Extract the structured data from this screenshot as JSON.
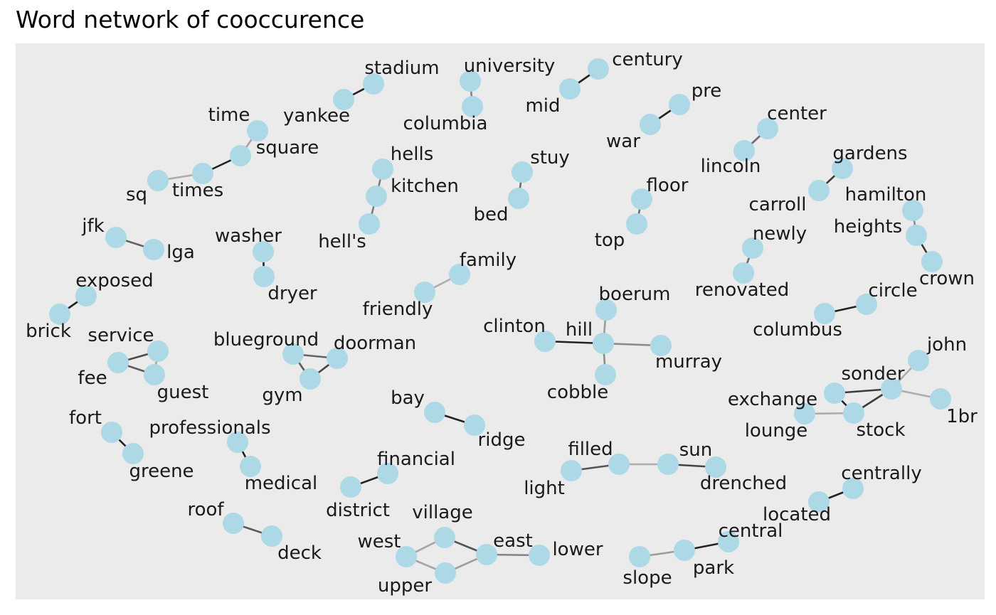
{
  "title": "Word network of cooccurence",
  "colors": {
    "panel": "#ebebeb",
    "node": "#add8e6",
    "edge_scale": [
      "#bdbdbd",
      "#1a1a1a"
    ]
  },
  "nodes": [
    {
      "id": "stadium",
      "label": "stadium"
    },
    {
      "id": "yankee",
      "label": "yankee"
    },
    {
      "id": "university",
      "label": "university"
    },
    {
      "id": "columbia",
      "label": "columbia"
    },
    {
      "id": "century",
      "label": "century"
    },
    {
      "id": "mid",
      "label": "mid"
    },
    {
      "id": "pre",
      "label": "pre"
    },
    {
      "id": "war",
      "label": "war"
    },
    {
      "id": "center",
      "label": "center"
    },
    {
      "id": "lincoln",
      "label": "lincoln"
    },
    {
      "id": "gardens",
      "label": "gardens"
    },
    {
      "id": "carroll",
      "label": "carroll"
    },
    {
      "id": "hamilton",
      "label": "hamilton"
    },
    {
      "id": "heights",
      "label": "heights"
    },
    {
      "id": "crown",
      "label": "crown"
    },
    {
      "id": "time",
      "label": "time"
    },
    {
      "id": "square",
      "label": "square"
    },
    {
      "id": "times",
      "label": "times"
    },
    {
      "id": "sq",
      "label": "sq"
    },
    {
      "id": "hells",
      "label": "hells"
    },
    {
      "id": "kitchen",
      "label": "kitchen"
    },
    {
      "id": "hell's",
      "label": "hell's"
    },
    {
      "id": "stuy",
      "label": "stuy"
    },
    {
      "id": "bed",
      "label": "bed"
    },
    {
      "id": "floor",
      "label": "floor"
    },
    {
      "id": "top",
      "label": "top"
    },
    {
      "id": "newly",
      "label": "newly"
    },
    {
      "id": "renovated",
      "label": "renovated"
    },
    {
      "id": "jfk",
      "label": "jfk"
    },
    {
      "id": "lga",
      "label": "lga"
    },
    {
      "id": "washer",
      "label": "washer"
    },
    {
      "id": "dryer",
      "label": "dryer"
    },
    {
      "id": "family",
      "label": "family"
    },
    {
      "id": "friendly",
      "label": "friendly"
    },
    {
      "id": "exposed",
      "label": "exposed"
    },
    {
      "id": "brick",
      "label": "brick"
    },
    {
      "id": "boerum",
      "label": "boerum"
    },
    {
      "id": "clinton",
      "label": "clinton"
    },
    {
      "id": "hill",
      "label": "hill"
    },
    {
      "id": "murray",
      "label": "murray"
    },
    {
      "id": "cobble",
      "label": "cobble"
    },
    {
      "id": "circle",
      "label": "circle"
    },
    {
      "id": "columbus",
      "label": "columbus"
    },
    {
      "id": "service",
      "label": "service"
    },
    {
      "id": "fee",
      "label": "fee"
    },
    {
      "id": "guest",
      "label": "guest"
    },
    {
      "id": "blueground",
      "label": "blueground"
    },
    {
      "id": "doorman",
      "label": "doorman"
    },
    {
      "id": "gym",
      "label": "gym"
    },
    {
      "id": "john",
      "label": "john"
    },
    {
      "id": "sonder",
      "label": "sonder"
    },
    {
      "id": "exchange",
      "label": "exchange"
    },
    {
      "id": "lounge",
      "label": "lounge"
    },
    {
      "id": "stock",
      "label": "stock"
    },
    {
      "id": "1br",
      "label": "1br"
    },
    {
      "id": "bay",
      "label": "bay"
    },
    {
      "id": "ridge",
      "label": "ridge"
    },
    {
      "id": "fort",
      "label": "fort"
    },
    {
      "id": "greene",
      "label": "greene"
    },
    {
      "id": "professionals",
      "label": "professionals"
    },
    {
      "id": "medical",
      "label": "medical"
    },
    {
      "id": "financial",
      "label": "financial"
    },
    {
      "id": "district",
      "label": "district"
    },
    {
      "id": "filled",
      "label": "filled"
    },
    {
      "id": "light",
      "label": "light"
    },
    {
      "id": "sun",
      "label": "sun"
    },
    {
      "id": "drenched",
      "label": "drenched"
    },
    {
      "id": "centrally",
      "label": "centrally"
    },
    {
      "id": "located",
      "label": "located"
    },
    {
      "id": "roof",
      "label": "roof"
    },
    {
      "id": "deck",
      "label": "deck"
    },
    {
      "id": "village",
      "label": "village"
    },
    {
      "id": "west",
      "label": "west"
    },
    {
      "id": "east",
      "label": "east"
    },
    {
      "id": "lower",
      "label": "lower"
    },
    {
      "id": "upper",
      "label": "upper"
    },
    {
      "id": "central",
      "label": "central"
    },
    {
      "id": "slope",
      "label": "slope"
    },
    {
      "id": "park",
      "label": "park"
    }
  ],
  "edges": [
    {
      "source": "yankee",
      "target": "stadium",
      "strength": 0.95
    },
    {
      "source": "university",
      "target": "columbia",
      "strength": 0.35
    },
    {
      "source": "mid",
      "target": "century",
      "strength": 0.95
    },
    {
      "source": "war",
      "target": "pre",
      "strength": 0.95
    },
    {
      "source": "lincoln",
      "target": "center",
      "strength": 0.5
    },
    {
      "source": "carroll",
      "target": "gardens",
      "strength": 0.8
    },
    {
      "source": "hamilton",
      "target": "heights",
      "strength": 0.3
    },
    {
      "source": "heights",
      "target": "crown",
      "strength": 0.85
    },
    {
      "source": "time",
      "target": "square",
      "strength": 0.15
    },
    {
      "source": "square",
      "target": "times",
      "strength": 0.95
    },
    {
      "source": "times",
      "target": "sq",
      "strength": 0.1
    },
    {
      "source": "hells",
      "target": "kitchen",
      "strength": 0.4
    },
    {
      "source": "kitchen",
      "target": "hell's",
      "strength": 0.4
    },
    {
      "source": "stuy",
      "target": "bed",
      "strength": 0.5
    },
    {
      "source": "floor",
      "target": "top",
      "strength": 0.5
    },
    {
      "source": "newly",
      "target": "renovated",
      "strength": 0.5
    },
    {
      "source": "jfk",
      "target": "lga",
      "strength": 0.55
    },
    {
      "source": "washer",
      "target": "dryer",
      "strength": 0.95
    },
    {
      "source": "friendly",
      "target": "family",
      "strength": 0.1
    },
    {
      "source": "brick",
      "target": "exposed",
      "strength": 0.95
    },
    {
      "source": "clinton",
      "target": "hill",
      "strength": 0.95
    },
    {
      "source": "hill",
      "target": "boerum",
      "strength": 0.2
    },
    {
      "source": "hill",
      "target": "murray",
      "strength": 0.3
    },
    {
      "source": "hill",
      "target": "cobble",
      "strength": 0.3
    },
    {
      "source": "columbus",
      "target": "circle",
      "strength": 0.95
    },
    {
      "source": "fee",
      "target": "service",
      "strength": 0.7
    },
    {
      "source": "fee",
      "target": "guest",
      "strength": 0.6
    },
    {
      "source": "service",
      "target": "guest",
      "strength": 0.15
    },
    {
      "source": "blueground",
      "target": "doorman",
      "strength": 0.55
    },
    {
      "source": "blueground",
      "target": "gym",
      "strength": 0.6
    },
    {
      "source": "gym",
      "target": "doorman",
      "strength": 0.75
    },
    {
      "source": "exchange",
      "target": "sonder",
      "strength": 0.8
    },
    {
      "source": "exchange",
      "target": "stock",
      "strength": 0.95
    },
    {
      "source": "stock",
      "target": "sonder",
      "strength": 0.8
    },
    {
      "source": "lounge",
      "target": "stock",
      "strength": 0.1
    },
    {
      "source": "sonder",
      "target": "john",
      "strength": 0.1
    },
    {
      "source": "sonder",
      "target": "1br",
      "strength": 0.1
    },
    {
      "source": "bay",
      "target": "ridge",
      "strength": 0.95
    },
    {
      "source": "fort",
      "target": "greene",
      "strength": 0.95
    },
    {
      "source": "professionals",
      "target": "medical",
      "strength": 0.95
    },
    {
      "source": "district",
      "target": "financial",
      "strength": 0.95
    },
    {
      "source": "light",
      "target": "filled",
      "strength": 0.65
    },
    {
      "source": "filled",
      "target": "sun",
      "strength": 0.1
    },
    {
      "source": "sun",
      "target": "drenched",
      "strength": 0.75
    },
    {
      "source": "located",
      "target": "centrally",
      "strength": 0.95
    },
    {
      "source": "roof",
      "target": "deck",
      "strength": 0.6
    },
    {
      "source": "west",
      "target": "village",
      "strength": 0.15
    },
    {
      "source": "west",
      "target": "upper",
      "strength": 0.15
    },
    {
      "source": "village",
      "target": "east",
      "strength": 0.65
    },
    {
      "source": "upper",
      "target": "east",
      "strength": 0.2
    },
    {
      "source": "east",
      "target": "lower",
      "strength": 0.35
    },
    {
      "source": "slope",
      "target": "park",
      "strength": 0.2
    },
    {
      "source": "park",
      "target": "central",
      "strength": 0.95
    }
  ]
}
